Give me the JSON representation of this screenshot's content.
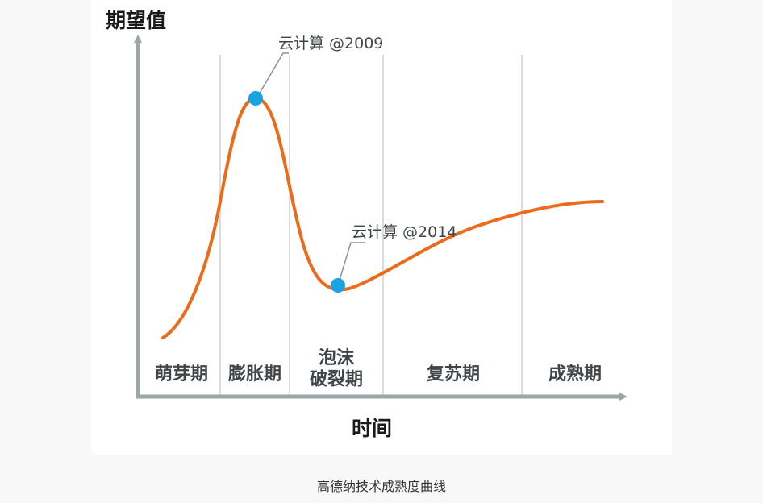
{
  "caption": "高德纳技术成熟度曲线",
  "colors": {
    "curve": "#ec6b1b",
    "marker": "#1aa3e2",
    "axis": "#9aa6a8",
    "divider": "#dcdcdc",
    "leader_line": "#8a9496"
  },
  "chart_data": {
    "type": "line",
    "title": "",
    "ylabel": "期望值",
    "xlabel": "时间",
    "grid": false,
    "legend": "none",
    "phases": [
      {
        "label": "萌芽期"
      },
      {
        "label": "膨胀期"
      },
      {
        "label": "泡沫\n破裂期"
      },
      {
        "label": "复苏期"
      },
      {
        "label": "成熟期"
      }
    ],
    "annotations": [
      {
        "label": "云计算 @2009",
        "point": "peak"
      },
      {
        "label": "云计算 @2014",
        "point": "trough"
      }
    ]
  }
}
